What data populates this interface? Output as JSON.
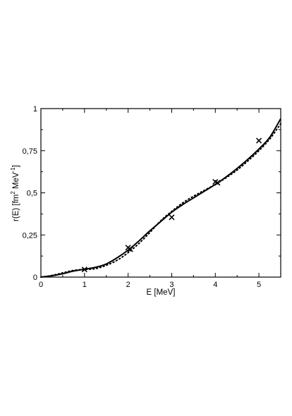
{
  "chart_data": {
    "type": "line",
    "title": "",
    "xlabel": "E [MeV]",
    "ylabel_parts": {
      "pre": "r(E) [fm",
      "sup1": "2",
      "mid": " MeV",
      "sup2": "-1",
      "post": "]"
    },
    "xlim": [
      0,
      5.5
    ],
    "ylim": [
      0,
      1
    ],
    "x_ticks": [
      {
        "value": 0,
        "label": "0"
      },
      {
        "value": 1,
        "label": "1"
      },
      {
        "value": 2,
        "label": "2"
      },
      {
        "value": 3,
        "label": "3"
      },
      {
        "value": 4,
        "label": "4"
      },
      {
        "value": 5,
        "label": "5"
      }
    ],
    "y_ticks": [
      {
        "value": 0,
        "label": "0"
      },
      {
        "value": 0.25,
        "label": "0,25"
      },
      {
        "value": 0.5,
        "label": "0,5"
      },
      {
        "value": 0.75,
        "label": "0,75"
      },
      {
        "value": 1,
        "label": "1"
      }
    ],
    "grid": false,
    "legend": "none",
    "series": [
      {
        "style": "solid",
        "color": "#000000",
        "x": [
          0,
          0.25,
          0.5,
          0.75,
          1.0,
          1.25,
          1.5,
          1.75,
          2.0,
          2.25,
          2.5,
          2.75,
          3.0,
          3.25,
          3.5,
          3.75,
          4.0,
          4.25,
          4.5,
          4.75,
          5.0,
          5.25,
          5.5
        ],
        "y": [
          0,
          0.008,
          0.02,
          0.036,
          0.047,
          0.058,
          0.078,
          0.115,
          0.16,
          0.215,
          0.275,
          0.33,
          0.385,
          0.43,
          0.47,
          0.51,
          0.55,
          0.595,
          0.645,
          0.7,
          0.76,
          0.83,
          0.94
        ]
      },
      {
        "style": "dotted",
        "color": "#000000",
        "x": [
          0,
          0.25,
          0.5,
          0.75,
          1.0,
          1.25,
          1.5,
          1.75,
          2.0,
          2.25,
          2.5,
          2.75,
          3.0,
          3.25,
          3.5,
          3.75,
          4.0,
          4.25,
          4.5,
          4.75,
          5.0,
          5.25,
          5.5
        ],
        "y": [
          0,
          0.01,
          0.025,
          0.04,
          0.045,
          0.05,
          0.07,
          0.1,
          0.145,
          0.2,
          0.265,
          0.335,
          0.39,
          0.44,
          0.48,
          0.515,
          0.55,
          0.59,
          0.635,
          0.69,
          0.75,
          0.82,
          0.91
        ]
      },
      {
        "style": "markers",
        "marker": "x",
        "color": "#000000",
        "x": [
          1.0,
          2.0,
          2.05,
          3.0,
          4.0,
          4.05,
          5.0
        ],
        "y": [
          0.045,
          0.175,
          0.165,
          0.355,
          0.565,
          0.56,
          0.81
        ]
      }
    ]
  }
}
